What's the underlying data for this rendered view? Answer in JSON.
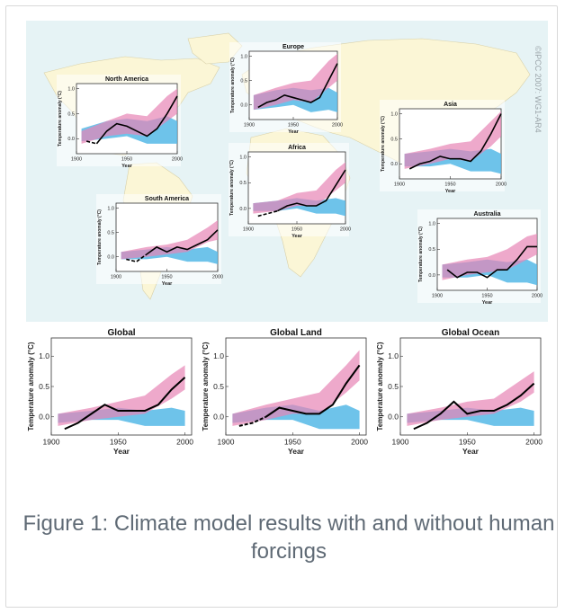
{
  "caption": "Figure 1: Climate model results with and without human forcings",
  "watermark": "©IPCC 2007: WG1-AR4",
  "colors": {
    "ocean": "#e6f3f5",
    "land": "#fbf6d6",
    "natural_band": "#55b8e6",
    "anthropogenic_band": "#e784b5",
    "observed": "#000000"
  },
  "chart_data": [
    {
      "name": "North America",
      "title": "North America",
      "ylabel": "Temperature anomaly (°C)",
      "xlabel": "Year",
      "xticks": [
        "1900",
        "1950",
        "2000"
      ],
      "yticks": [
        "0.0",
        "0.5",
        "1.0"
      ],
      "xlim": [
        1900,
        2000
      ],
      "ylim": [
        -0.3,
        1.1
      ],
      "observed": [
        [
          1910,
          -0.05
        ],
        [
          1920,
          -0.1
        ],
        [
          1930,
          0.15
        ],
        [
          1940,
          0.3
        ],
        [
          1950,
          0.25
        ],
        [
          1960,
          0.15
        ],
        [
          1970,
          0.05
        ],
        [
          1980,
          0.2
        ],
        [
          1990,
          0.5
        ],
        [
          2000,
          0.85
        ]
      ],
      "observed_dashed_until": 1920,
      "natural": [
        [
          1905,
          -0.05,
          0.2
        ],
        [
          1930,
          0.0,
          0.35
        ],
        [
          1950,
          0.05,
          0.4
        ],
        [
          1970,
          -0.1,
          0.35
        ],
        [
          1990,
          -0.1,
          0.45
        ],
        [
          2000,
          -0.1,
          0.35
        ]
      ],
      "anthropogenic": [
        [
          1905,
          -0.1,
          0.15
        ],
        [
          1930,
          0.05,
          0.35
        ],
        [
          1950,
          0.1,
          0.5
        ],
        [
          1970,
          0.05,
          0.45
        ],
        [
          1990,
          0.35,
          0.85
        ],
        [
          2000,
          0.5,
          1.0
        ]
      ]
    },
    {
      "name": "Europe",
      "title": "Europe",
      "ylabel": "Temperature anomaly (°C)",
      "xlabel": "Year",
      "xticks": [
        "1900",
        "1950",
        "2000"
      ],
      "yticks": [
        "0.0",
        "0.5",
        "1.0"
      ],
      "xlim": [
        1900,
        2000
      ],
      "ylim": [
        -0.3,
        1.1
      ],
      "observed": [
        [
          1910,
          -0.05
        ],
        [
          1920,
          0.05
        ],
        [
          1930,
          0.1
        ],
        [
          1940,
          0.2
        ],
        [
          1950,
          0.15
        ],
        [
          1960,
          0.1
        ],
        [
          1970,
          0.05
        ],
        [
          1980,
          0.15
        ],
        [
          1990,
          0.5
        ],
        [
          2000,
          0.85
        ]
      ],
      "observed_dashed_until": 1910,
      "natural": [
        [
          1905,
          -0.1,
          0.2
        ],
        [
          1930,
          -0.05,
          0.3
        ],
        [
          1950,
          0.0,
          0.35
        ],
        [
          1970,
          -0.15,
          0.3
        ],
        [
          1990,
          -0.1,
          0.35
        ],
        [
          2000,
          -0.15,
          0.25
        ]
      ],
      "anthropogenic": [
        [
          1905,
          -0.1,
          0.2
        ],
        [
          1930,
          0.0,
          0.35
        ],
        [
          1950,
          0.1,
          0.45
        ],
        [
          1970,
          0.05,
          0.5
        ],
        [
          1990,
          0.35,
          0.9
        ],
        [
          2000,
          0.5,
          1.05
        ]
      ]
    },
    {
      "name": "Asia",
      "title": "Asia",
      "ylabel": "Temperature anomaly (°C)",
      "xlabel": "Year",
      "xticks": [
        "1900",
        "1950",
        "2000"
      ],
      "yticks": [
        "0.0",
        "0.5",
        "1.0"
      ],
      "xlim": [
        1900,
        2000
      ],
      "ylim": [
        -0.3,
        1.1
      ],
      "observed": [
        [
          1910,
          -0.1
        ],
        [
          1920,
          0.0
        ],
        [
          1930,
          0.05
        ],
        [
          1940,
          0.15
        ],
        [
          1950,
          0.1
        ],
        [
          1960,
          0.1
        ],
        [
          1970,
          0.05
        ],
        [
          1980,
          0.25
        ],
        [
          1990,
          0.6
        ],
        [
          2000,
          1.0
        ]
      ],
      "observed_dashed_until": 1910,
      "natural": [
        [
          1905,
          -0.05,
          0.2
        ],
        [
          1930,
          -0.05,
          0.25
        ],
        [
          1950,
          0.0,
          0.3
        ],
        [
          1970,
          -0.15,
          0.25
        ],
        [
          1990,
          -0.15,
          0.3
        ],
        [
          2000,
          -0.2,
          0.2
        ]
      ],
      "anthropogenic": [
        [
          1905,
          -0.1,
          0.2
        ],
        [
          1930,
          0.0,
          0.3
        ],
        [
          1950,
          0.1,
          0.4
        ],
        [
          1970,
          0.05,
          0.45
        ],
        [
          1990,
          0.35,
          0.85
        ],
        [
          2000,
          0.55,
          1.05
        ]
      ]
    },
    {
      "name": "Africa",
      "title": "Africa",
      "ylabel": "Temperature anomaly (°C)",
      "xlabel": "Year",
      "xticks": [
        "1900",
        "1950",
        "2000"
      ],
      "yticks": [
        "0.0",
        "0.5",
        "1.0"
      ],
      "xlim": [
        1900,
        2000
      ],
      "ylim": [
        -0.3,
        1.1
      ],
      "observed": [
        [
          1910,
          -0.15
        ],
        [
          1920,
          -0.1
        ],
        [
          1930,
          -0.05
        ],
        [
          1940,
          0.05
        ],
        [
          1950,
          0.1
        ],
        [
          1960,
          0.05
        ],
        [
          1970,
          0.05
        ],
        [
          1980,
          0.15
        ],
        [
          1990,
          0.45
        ],
        [
          2000,
          0.75
        ]
      ],
      "observed_dashed_until": 1930,
      "natural": [
        [
          1905,
          -0.05,
          0.1
        ],
        [
          1930,
          -0.05,
          0.15
        ],
        [
          1950,
          0.0,
          0.2
        ],
        [
          1970,
          -0.1,
          0.15
        ],
        [
          1990,
          -0.1,
          0.2
        ],
        [
          2000,
          -0.15,
          0.15
        ]
      ],
      "anthropogenic": [
        [
          1905,
          -0.1,
          0.1
        ],
        [
          1930,
          -0.05,
          0.15
        ],
        [
          1950,
          0.05,
          0.3
        ],
        [
          1970,
          0.05,
          0.35
        ],
        [
          1990,
          0.35,
          0.75
        ],
        [
          2000,
          0.5,
          0.9
        ]
      ]
    },
    {
      "name": "South America",
      "title": "South America",
      "ylabel": "Temperature anomaly (°C)",
      "xlabel": "Year",
      "xticks": [
        "1900",
        "1950",
        "2000"
      ],
      "yticks": [
        "0.0",
        "0.5",
        "1.0"
      ],
      "xlim": [
        1900,
        2000
      ],
      "ylim": [
        -0.3,
        1.1
      ],
      "observed": [
        [
          1910,
          -0.05
        ],
        [
          1920,
          -0.1
        ],
        [
          1930,
          0.05
        ],
        [
          1940,
          0.2
        ],
        [
          1950,
          0.1
        ],
        [
          1960,
          0.2
        ],
        [
          1970,
          0.15
        ],
        [
          1980,
          0.25
        ],
        [
          1990,
          0.35
        ],
        [
          2000,
          0.55
        ]
      ],
      "observed_dashed_until": 1930,
      "natural": [
        [
          1905,
          -0.05,
          0.1
        ],
        [
          1930,
          -0.05,
          0.15
        ],
        [
          1950,
          0.0,
          0.2
        ],
        [
          1970,
          -0.1,
          0.15
        ],
        [
          1990,
          -0.1,
          0.2
        ],
        [
          2000,
          -0.15,
          0.1
        ]
      ],
      "anthropogenic": [
        [
          1905,
          -0.05,
          0.1
        ],
        [
          1930,
          0.0,
          0.2
        ],
        [
          1950,
          0.05,
          0.25
        ],
        [
          1970,
          0.1,
          0.35
        ],
        [
          1990,
          0.3,
          0.6
        ],
        [
          2000,
          0.35,
          0.75
        ]
      ]
    },
    {
      "name": "Australia",
      "title": "Australia",
      "ylabel": "Temperature anomaly (°C)",
      "xlabel": "Year",
      "xticks": [
        "1900",
        "1950",
        "2000"
      ],
      "yticks": [
        "0.0",
        "0.5",
        "1.0"
      ],
      "xlim": [
        1900,
        2000
      ],
      "ylim": [
        -0.3,
        1.1
      ],
      "observed": [
        [
          1910,
          0.1
        ],
        [
          1920,
          -0.05
        ],
        [
          1930,
          0.05
        ],
        [
          1940,
          0.05
        ],
        [
          1950,
          -0.05
        ],
        [
          1960,
          0.1
        ],
        [
          1970,
          0.1
        ],
        [
          1980,
          0.3
        ],
        [
          1990,
          0.55
        ],
        [
          2000,
          0.55
        ]
      ],
      "observed_dashed_until": 1910,
      "natural": [
        [
          1905,
          -0.05,
          0.2
        ],
        [
          1930,
          -0.05,
          0.25
        ],
        [
          1950,
          0.0,
          0.3
        ],
        [
          1970,
          -0.15,
          0.25
        ],
        [
          1990,
          -0.15,
          0.3
        ],
        [
          2000,
          -0.2,
          0.2
        ]
      ],
      "anthropogenic": [
        [
          1905,
          -0.1,
          0.2
        ],
        [
          1930,
          0.0,
          0.3
        ],
        [
          1950,
          0.05,
          0.35
        ],
        [
          1970,
          0.1,
          0.5
        ],
        [
          1990,
          0.3,
          0.75
        ],
        [
          2000,
          0.4,
          0.8
        ]
      ]
    },
    {
      "name": "Global",
      "title": "Global",
      "ylabel": "Temperature anomaly (°C)",
      "xlabel": "Year",
      "xticks": [
        "1900",
        "1950",
        "2000"
      ],
      "yticks": [
        "0.0",
        "0.5",
        "1.0"
      ],
      "xlim": [
        1900,
        2005
      ],
      "ylim": [
        -0.3,
        1.3
      ],
      "observed": [
        [
          1910,
          -0.2
        ],
        [
          1920,
          -0.1
        ],
        [
          1930,
          0.05
        ],
        [
          1940,
          0.2
        ],
        [
          1950,
          0.1
        ],
        [
          1960,
          0.1
        ],
        [
          1970,
          0.1
        ],
        [
          1980,
          0.2
        ],
        [
          1990,
          0.45
        ],
        [
          2000,
          0.65
        ]
      ],
      "observed_dashed_until": 1910,
      "natural": [
        [
          1905,
          -0.1,
          0.05
        ],
        [
          1930,
          -0.05,
          0.1
        ],
        [
          1950,
          -0.05,
          0.15
        ],
        [
          1970,
          -0.15,
          0.1
        ],
        [
          1990,
          -0.15,
          0.15
        ],
        [
          2000,
          -0.15,
          0.1
        ]
      ],
      "anthropogenic": [
        [
          1905,
          -0.15,
          0.05
        ],
        [
          1930,
          -0.05,
          0.15
        ],
        [
          1950,
          0.0,
          0.25
        ],
        [
          1970,
          0.05,
          0.35
        ],
        [
          1990,
          0.3,
          0.7
        ],
        [
          2000,
          0.45,
          0.85
        ]
      ]
    },
    {
      "name": "Global Land",
      "title": "Global Land",
      "ylabel": "Temperature anomaly (°C)",
      "xlabel": "Year",
      "xticks": [
        "1900",
        "1950",
        "2000"
      ],
      "yticks": [
        "0.0",
        "0.5",
        "1.0"
      ],
      "xlim": [
        1900,
        2005
      ],
      "ylim": [
        -0.3,
        1.3
      ],
      "observed": [
        [
          1910,
          -0.15
        ],
        [
          1920,
          -0.1
        ],
        [
          1930,
          0.0
        ],
        [
          1940,
          0.15
        ],
        [
          1950,
          0.1
        ],
        [
          1960,
          0.05
        ],
        [
          1970,
          0.05
        ],
        [
          1980,
          0.2
        ],
        [
          1990,
          0.55
        ],
        [
          2000,
          0.85
        ]
      ],
      "observed_dashed_until": 1930,
      "natural": [
        [
          1905,
          -0.1,
          0.05
        ],
        [
          1930,
          -0.05,
          0.15
        ],
        [
          1950,
          -0.05,
          0.2
        ],
        [
          1970,
          -0.2,
          0.1
        ],
        [
          1990,
          -0.2,
          0.2
        ],
        [
          2000,
          -0.2,
          0.1
        ]
      ],
      "anthropogenic": [
        [
          1905,
          -0.15,
          0.05
        ],
        [
          1930,
          -0.05,
          0.2
        ],
        [
          1950,
          0.05,
          0.3
        ],
        [
          1970,
          0.05,
          0.4
        ],
        [
          1990,
          0.4,
          0.85
        ],
        [
          2000,
          0.6,
          1.1
        ]
      ]
    },
    {
      "name": "Global Ocean",
      "title": "Global Ocean",
      "ylabel": "Temperature anomaly (°C)",
      "xlabel": "Year",
      "xticks": [
        "1900",
        "1950",
        "2000"
      ],
      "yticks": [
        "0.0",
        "0.5",
        "1.0"
      ],
      "xlim": [
        1900,
        2005
      ],
      "ylim": [
        -0.3,
        1.3
      ],
      "observed": [
        [
          1910,
          -0.2
        ],
        [
          1920,
          -0.1
        ],
        [
          1930,
          0.05
        ],
        [
          1940,
          0.25
        ],
        [
          1950,
          0.05
        ],
        [
          1960,
          0.1
        ],
        [
          1970,
          0.1
        ],
        [
          1980,
          0.2
        ],
        [
          1990,
          0.35
        ],
        [
          2000,
          0.55
        ]
      ],
      "observed_dashed_until": 1910,
      "natural": [
        [
          1905,
          -0.1,
          0.05
        ],
        [
          1930,
          -0.05,
          0.1
        ],
        [
          1950,
          -0.05,
          0.15
        ],
        [
          1970,
          -0.15,
          0.1
        ],
        [
          1990,
          -0.15,
          0.15
        ],
        [
          2000,
          -0.15,
          0.1
        ]
      ],
      "anthropogenic": [
        [
          1905,
          -0.15,
          0.05
        ],
        [
          1930,
          -0.05,
          0.15
        ],
        [
          1950,
          0.0,
          0.25
        ],
        [
          1970,
          0.05,
          0.3
        ],
        [
          1990,
          0.25,
          0.6
        ],
        [
          2000,
          0.4,
          0.75
        ]
      ]
    }
  ]
}
